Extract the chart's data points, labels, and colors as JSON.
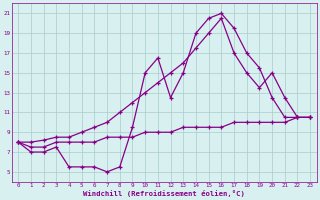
{
  "x": [
    0,
    1,
    2,
    3,
    4,
    5,
    6,
    7,
    8,
    9,
    10,
    11,
    12,
    13,
    14,
    15,
    16,
    17,
    18,
    19,
    20,
    21,
    22,
    23
  ],
  "line_wavy": [
    8.0,
    7.0,
    7.0,
    7.5,
    5.5,
    5.5,
    5.5,
    5.0,
    5.5,
    9.5,
    15.0,
    16.5,
    12.5,
    15.0,
    19.0,
    20.5,
    21.0,
    19.5,
    17.0,
    15.5,
    12.5,
    10.5,
    10.5,
    10.5
  ],
  "line_high": [
    8.0,
    8.0,
    8.2,
    8.5,
    8.5,
    9.0,
    9.5,
    10.0,
    11.0,
    12.0,
    13.0,
    14.0,
    15.0,
    16.0,
    17.5,
    19.0,
    20.5,
    17.0,
    15.0,
    13.5,
    15.0,
    12.5,
    10.5,
    10.5
  ],
  "line_flat": [
    8.0,
    7.5,
    7.5,
    8.0,
    8.0,
    8.0,
    8.0,
    8.5,
    8.5,
    8.5,
    9.0,
    9.0,
    9.0,
    9.5,
    9.5,
    9.5,
    9.5,
    10.0,
    10.0,
    10.0,
    10.0,
    10.0,
    10.5,
    10.5
  ],
  "line_color": "#880088",
  "bg_color": "#d8f0f0",
  "grid_color": "#aacccc",
  "xlabel": "Windchill (Refroidissement éolien,°C)",
  "ylim": [
    4,
    22
  ],
  "xlim": [
    -0.5,
    23.5
  ],
  "yticks": [
    5,
    7,
    9,
    11,
    13,
    15,
    17,
    19,
    21
  ],
  "xticks": [
    0,
    1,
    2,
    3,
    4,
    5,
    6,
    7,
    8,
    9,
    10,
    11,
    12,
    13,
    14,
    15,
    16,
    17,
    18,
    19,
    20,
    21,
    22,
    23
  ]
}
